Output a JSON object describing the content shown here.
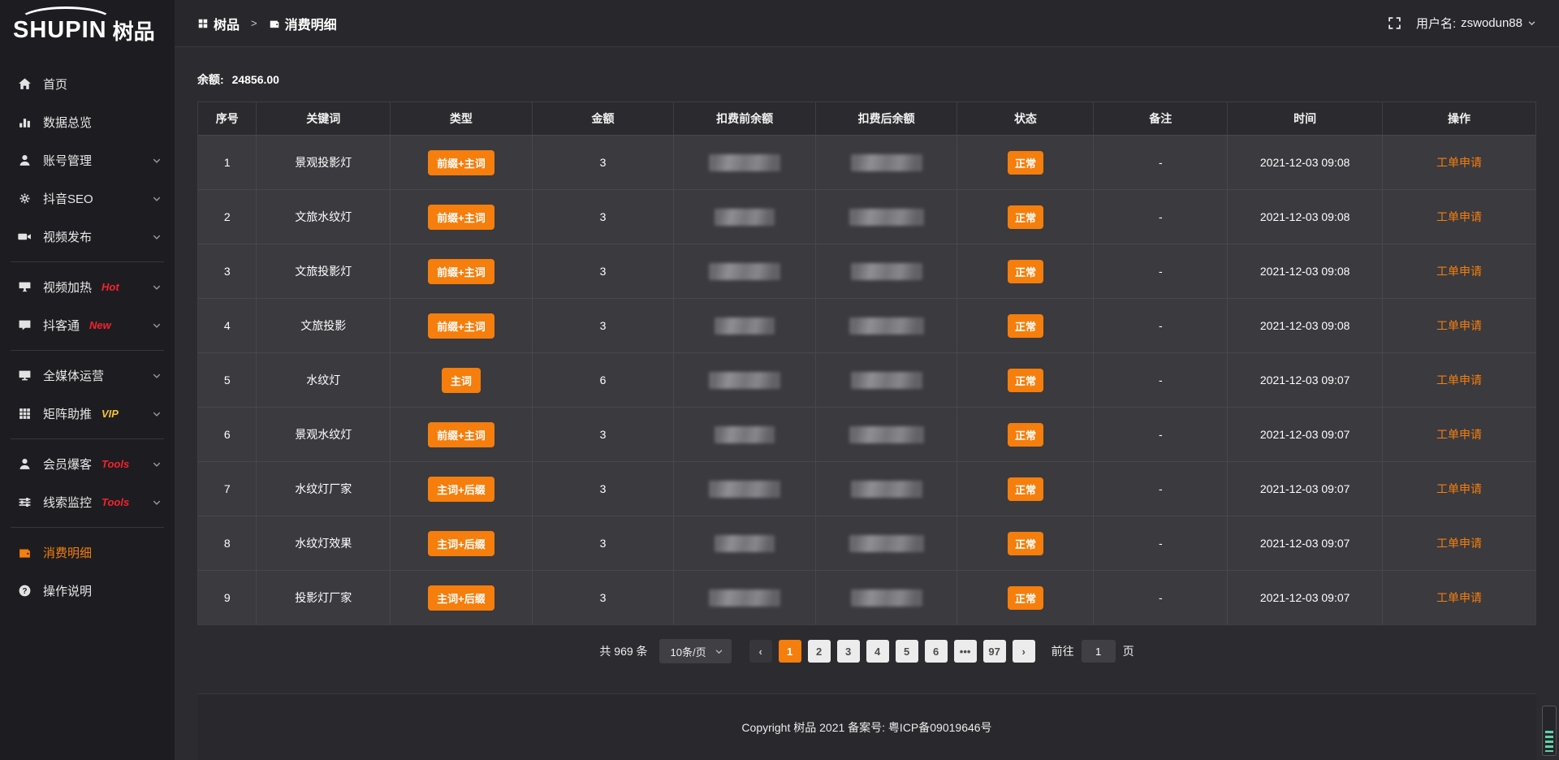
{
  "brand": {
    "logo_en": "SHUPIN",
    "logo_cn": "树品"
  },
  "topbar": {
    "breadcrumb_home": "树品",
    "separator": ">",
    "breadcrumb_current": "消费明细",
    "username_label": "用户名:",
    "username": "zswodun88"
  },
  "sidebar": {
    "groups": [
      {
        "items": [
          {
            "icon": "home-icon",
            "label": "首页"
          },
          {
            "icon": "bar-chart-icon",
            "label": "数据总览"
          },
          {
            "icon": "user-icon",
            "label": "账号管理",
            "chevron": true
          },
          {
            "icon": "gear-icon",
            "label": "抖音SEO",
            "chevron": true
          },
          {
            "icon": "video-icon",
            "label": "视频发布",
            "chevron": true
          }
        ]
      },
      {
        "items": [
          {
            "icon": "screen-icon",
            "label": "视频加热",
            "tag": "Hot",
            "tag_color": "#f5222d",
            "chevron": true
          },
          {
            "icon": "comment-icon",
            "label": "抖客通",
            "tag": "New",
            "tag_color": "#f5222d",
            "chevron": true
          }
        ]
      },
      {
        "items": [
          {
            "icon": "monitor-icon",
            "label": "全媒体运营",
            "chevron": true
          },
          {
            "icon": "grid-icon",
            "label": "矩阵助推",
            "tag": "VIP",
            "tag_color": "#f2c230",
            "chevron": true
          }
        ]
      },
      {
        "items": [
          {
            "icon": "member-icon",
            "label": "会员爆客",
            "tag": "Tools",
            "tag_color": "#f5222d",
            "chevron": true
          },
          {
            "icon": "sliders-icon",
            "label": "线索监控",
            "tag": "Tools",
            "tag_color": "#f5222d",
            "chevron": true
          }
        ]
      },
      {
        "items": [
          {
            "icon": "wallet-icon",
            "label": "消费明细",
            "active": true
          },
          {
            "icon": "question-icon",
            "label": "操作说明"
          }
        ]
      }
    ]
  },
  "balance": {
    "label": "余额:",
    "value": "24856.00"
  },
  "table": {
    "columns": [
      "序号",
      "关键词",
      "类型",
      "金额",
      "扣费前余额",
      "扣费后余额",
      "状态",
      "备注",
      "时间",
      "操作"
    ],
    "masked_columns": [
      "扣费前余额",
      "扣费后余额"
    ],
    "rows": [
      {
        "index": "1",
        "keyword": "景观投影灯",
        "type": "前缀+主词",
        "amount": "3",
        "status": "正常",
        "remark": "-",
        "time": "2021-12-03 09:08",
        "action": "工单申请"
      },
      {
        "index": "2",
        "keyword": "文旅水纹灯",
        "type": "前缀+主词",
        "amount": "3",
        "status": "正常",
        "remark": "-",
        "time": "2021-12-03 09:08",
        "action": "工单申请"
      },
      {
        "index": "3",
        "keyword": "文旅投影灯",
        "type": "前缀+主词",
        "amount": "3",
        "status": "正常",
        "remark": "-",
        "time": "2021-12-03 09:08",
        "action": "工单申请"
      },
      {
        "index": "4",
        "keyword": "文旅投影",
        "type": "前缀+主词",
        "amount": "3",
        "status": "正常",
        "remark": "-",
        "time": "2021-12-03 09:08",
        "action": "工单申请"
      },
      {
        "index": "5",
        "keyword": "水纹灯",
        "type": "主词",
        "amount": "6",
        "status": "正常",
        "remark": "-",
        "time": "2021-12-03 09:07",
        "action": "工单申请"
      },
      {
        "index": "6",
        "keyword": "景观水纹灯",
        "type": "前缀+主词",
        "amount": "3",
        "status": "正常",
        "remark": "-",
        "time": "2021-12-03 09:07",
        "action": "工单申请"
      },
      {
        "index": "7",
        "keyword": "水纹灯厂家",
        "type": "主词+后缀",
        "amount": "3",
        "status": "正常",
        "remark": "-",
        "time": "2021-12-03 09:07",
        "action": "工单申请"
      },
      {
        "index": "8",
        "keyword": "水纹灯效果",
        "type": "主词+后缀",
        "amount": "3",
        "status": "正常",
        "remark": "-",
        "time": "2021-12-03 09:07",
        "action": "工单申请"
      },
      {
        "index": "9",
        "keyword": "投影灯厂家",
        "type": "主词+后缀",
        "amount": "3",
        "status": "正常",
        "remark": "-",
        "time": "2021-12-03 09:07",
        "action": "工单申请"
      }
    ]
  },
  "pagination": {
    "total_label": "共 969 条",
    "page_size": "10条/页",
    "pages": [
      "1",
      "2",
      "3",
      "4",
      "5",
      "6",
      "•••",
      "97"
    ],
    "active_page": "1",
    "prev_label": "‹",
    "next_label": "›",
    "goto_label": "前往",
    "goto_value": "1",
    "goto_suffix": "页"
  },
  "footer": {
    "copyright": "Copyright 树品 2021 备案号: 粤ICP备09019646号"
  },
  "colors": {
    "accent": "#f57e0c",
    "hot_tag": "#f5222d",
    "vip_tag": "#f2c230"
  }
}
